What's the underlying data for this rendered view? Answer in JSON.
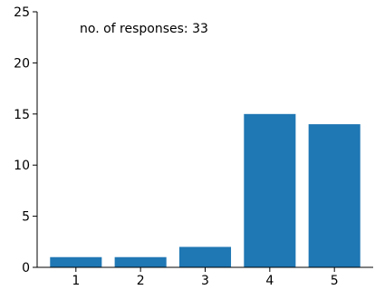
{
  "chart_data": {
    "type": "bar",
    "categories": [
      "1",
      "2",
      "3",
      "4",
      "5"
    ],
    "values": [
      1,
      1,
      2,
      15,
      14
    ],
    "title": "",
    "xlabel": "",
    "ylabel": "",
    "ylim": [
      0,
      25
    ],
    "yticks": [
      0,
      5,
      10,
      15,
      20,
      25
    ],
    "xlim": [
      0.4,
      5.6
    ],
    "grid": false,
    "annotation": "no. of responses: 33",
    "bar_color": "#1f77b4"
  }
}
